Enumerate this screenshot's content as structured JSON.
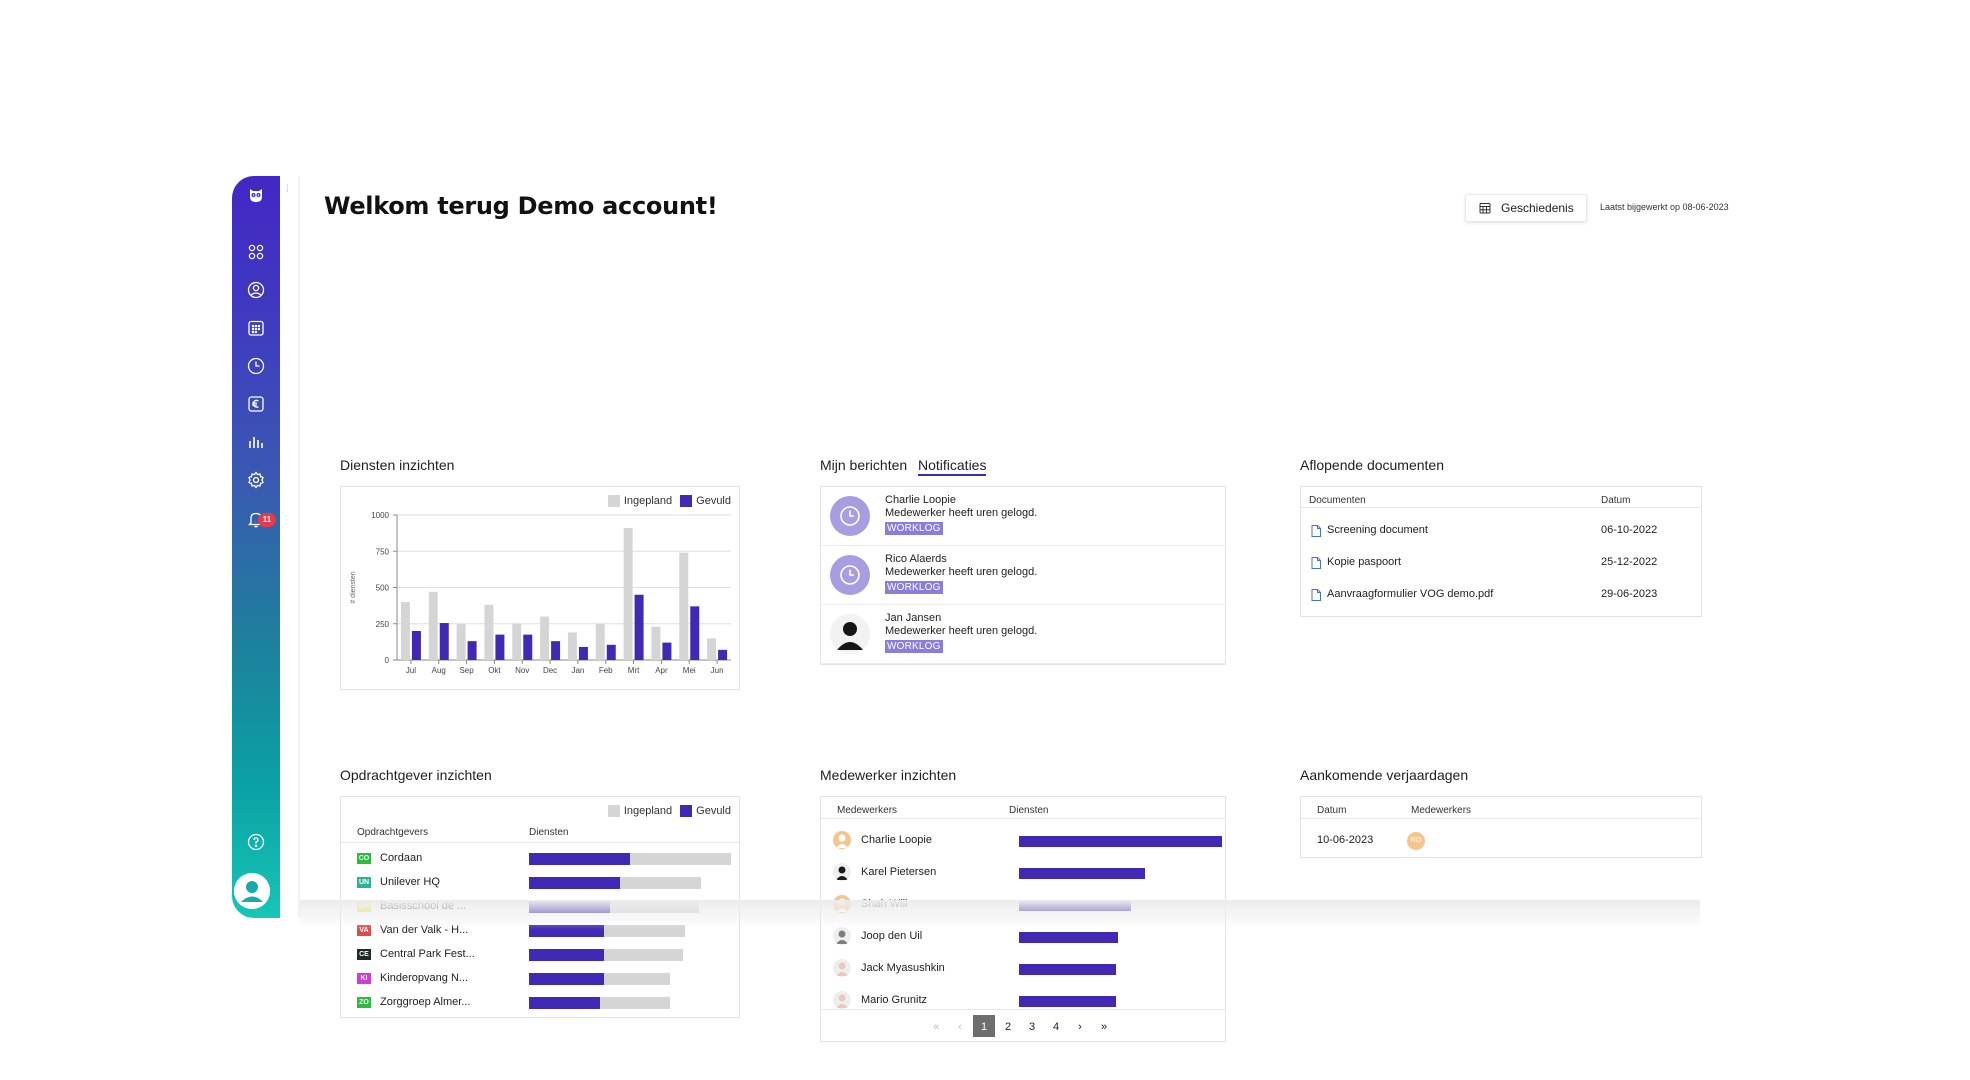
{
  "header": {
    "title": "Welkom terug Demo account!",
    "history_label": "Geschiedenis",
    "last_updated": "Laatst bijgewerkt op 08-06-2023"
  },
  "sidebar": {
    "items": [
      {
        "icon": "owl-logo-icon"
      },
      {
        "icon": "dashboard-grid-icon"
      },
      {
        "icon": "user-circle-icon"
      },
      {
        "icon": "calendar-icon"
      },
      {
        "icon": "clock-icon"
      },
      {
        "icon": "euro-icon"
      },
      {
        "icon": "bar-chart-icon"
      },
      {
        "icon": "gear-icon"
      },
      {
        "icon": "bell-icon"
      }
    ],
    "notification_count": "11",
    "help_icon": "help-icon",
    "avatar_icon": "user-avatar-icon"
  },
  "colors": {
    "accent": "#4229b5",
    "planned": "#d5d5d5",
    "tag": "#8b7ddc"
  },
  "services": {
    "title": "Diensten inzichten",
    "legend": [
      "Ingepland",
      "Gevuld"
    ],
    "chart_data": {
      "type": "bar",
      "categories": [
        "Jul",
        "Aug",
        "Sep",
        "Okt",
        "Nov",
        "Dec",
        "Jan",
        "Feb",
        "Mrt",
        "Apr",
        "Mei",
        "Jun"
      ],
      "series": [
        {
          "name": "Ingepland",
          "values": [
            400,
            470,
            250,
            380,
            250,
            300,
            190,
            250,
            910,
            230,
            740,
            150
          ]
        },
        {
          "name": "Gevuld",
          "values": [
            200,
            255,
            130,
            175,
            175,
            130,
            90,
            105,
            450,
            120,
            370,
            70
          ]
        }
      ],
      "ylabel": "# diensten",
      "yticks": [
        0,
        250,
        500,
        750,
        1000
      ],
      "ylim": [
        0,
        1000
      ],
      "legend": "top-right",
      "grid": true
    }
  },
  "messages": {
    "tab_messages": "Mijn berichten",
    "tab_notifications": "Notificaties",
    "items": [
      {
        "name": "Charlie Loopie",
        "text": "Medewerker heeft uren gelogd.",
        "tag": "WORKLOG",
        "avatar": "clock-icon"
      },
      {
        "name": "Rico Alaerds",
        "text": "Medewerker heeft uren gelogd.",
        "tag": "WORKLOG",
        "avatar": "clock-icon"
      },
      {
        "name": "Jan Jansen",
        "text": "Medewerker heeft uren gelogd.",
        "tag": "WORKLOG",
        "avatar": "person-photo"
      }
    ]
  },
  "documents": {
    "title": "Aflopende documenten",
    "col_doc": "Documenten",
    "col_date": "Datum",
    "rows": [
      {
        "name": "Screening document",
        "date": "06-10-2022"
      },
      {
        "name": "Kopie paspoort",
        "date": "25-12-2022"
      },
      {
        "name": "Aanvraagformulier VOG demo.pdf",
        "date": "29-06-2023"
      }
    ]
  },
  "clients": {
    "title": "Opdrachtgever inzichten",
    "legend": [
      "Ingepland",
      "Gevuld"
    ],
    "col_clients": "Opdrachtgevers",
    "col_services": "Diensten",
    "rows": [
      {
        "abbr": "CO",
        "name": "Cordaan",
        "color": "#2bbd3c",
        "planned": 1.0,
        "filled": 0.5
      },
      {
        "abbr": "UN",
        "name": "Unilever HQ",
        "color": "#2bb39a",
        "planned": 0.85,
        "filled": 0.45
      },
      {
        "abbr": "BA",
        "name": "Basisschool de ...",
        "color": "#ece64a",
        "planned": 0.84,
        "filled": 0.4
      },
      {
        "abbr": "VA",
        "name": "Van der Valk - H...",
        "color": "#e24a4a",
        "planned": 0.77,
        "filled": 0.37
      },
      {
        "abbr": "CE",
        "name": "Central Park Fest...",
        "color": "#1f2a2a",
        "planned": 0.76,
        "filled": 0.37
      },
      {
        "abbr": "KI",
        "name": "Kinderopvang N...",
        "color": "#d63ad6",
        "planned": 0.7,
        "filled": 0.37
      },
      {
        "abbr": "ZO",
        "name": "Zorggroep Almer...",
        "color": "#2bbd3c",
        "planned": 0.7,
        "filled": 0.35
      }
    ]
  },
  "employees": {
    "title": "Medewerker inzichten",
    "col_employees": "Medewerkers",
    "col_services": "Diensten",
    "rows": [
      {
        "name": "Charlie Loopie",
        "value": 1.0,
        "avatar": "placeholder"
      },
      {
        "name": "Karel Pietersen",
        "value": 0.62,
        "avatar": "dark"
      },
      {
        "name": "Shah Will",
        "value": 0.55,
        "avatar": "placeholder"
      },
      {
        "name": "Joop den Uil",
        "value": 0.49,
        "avatar": "grey"
      },
      {
        "name": "Jack Myasushkin",
        "value": 0.48,
        "avatar": "light"
      },
      {
        "name": "Mario Grunitz",
        "value": 0.48,
        "avatar": "light"
      }
    ],
    "pagination": {
      "pages": [
        "1",
        "2",
        "3",
        "4"
      ],
      "current": "1",
      "first": "«",
      "prev": "‹",
      "next": "›",
      "last": "»"
    }
  },
  "birthdays": {
    "title": "Aankomende verjaardagen",
    "col_date": "Datum",
    "col_employees": "Medewerkers",
    "rows": [
      {
        "date": "10-06-2023",
        "initials": "RO"
      }
    ]
  }
}
